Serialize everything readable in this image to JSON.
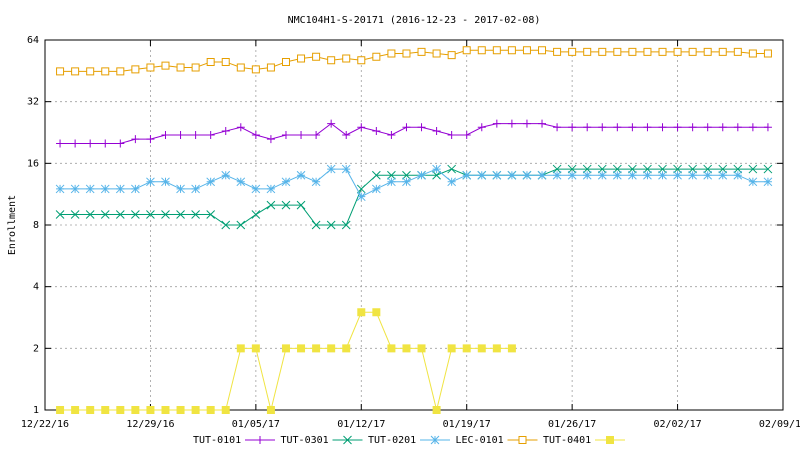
{
  "chart_data": {
    "type": "line",
    "title": "NMC104H1-S-20171 (2016-12-23 - 2017-02-08)",
    "y_label": "Enrollment",
    "yscale": "log",
    "grid": true,
    "legend": "bottom",
    "xlim": [
      "2016-12-22",
      "2017-02-09"
    ],
    "xticks": [
      {
        "value": "2016-12-22",
        "label": "12/22/16"
      },
      {
        "value": "2016-12-29",
        "label": "12/29/16"
      },
      {
        "value": "2017-01-05",
        "label": "01/05/17"
      },
      {
        "value": "2017-01-12",
        "label": "01/12/17"
      },
      {
        "value": "2017-01-19",
        "label": "01/19/17"
      },
      {
        "value": "2017-01-26",
        "label": "01/26/17"
      },
      {
        "value": "2017-02-02",
        "label": "02/02/17"
      },
      {
        "value": "2017-02-09",
        "label": "02/09/17"
      }
    ],
    "ylim": [
      1,
      64
    ],
    "yticks": [
      1,
      2,
      4,
      8,
      16,
      32,
      64
    ],
    "x": [
      "2016-12-23",
      "2016-12-24",
      "2016-12-25",
      "2016-12-26",
      "2016-12-27",
      "2016-12-28",
      "2016-12-29",
      "2016-12-30",
      "2016-12-31",
      "2017-01-01",
      "2017-01-02",
      "2017-01-03",
      "2017-01-04",
      "2017-01-05",
      "2017-01-06",
      "2017-01-07",
      "2017-01-08",
      "2017-01-09",
      "2017-01-10",
      "2017-01-11",
      "2017-01-12",
      "2017-01-13",
      "2017-01-14",
      "2017-01-15",
      "2017-01-16",
      "2017-01-17",
      "2017-01-18",
      "2017-01-19",
      "2017-01-20",
      "2017-01-21",
      "2017-01-22",
      "2017-01-23",
      "2017-01-24",
      "2017-01-25",
      "2017-01-26",
      "2017-01-27",
      "2017-01-28",
      "2017-01-29",
      "2017-01-30",
      "2017-01-31",
      "2017-02-01",
      "2017-02-02",
      "2017-02-03",
      "2017-02-04",
      "2017-02-05",
      "2017-02-06",
      "2017-02-07",
      "2017-02-08"
    ],
    "series": [
      {
        "name": "TUT-0101",
        "color": "#9400d3",
        "marker": "plus",
        "values": [
          20,
          20,
          20,
          20,
          20,
          21,
          21,
          22,
          22,
          22,
          22,
          23,
          24,
          22,
          21,
          22,
          22,
          22,
          25,
          22,
          24,
          23,
          22,
          24,
          24,
          23,
          22,
          22,
          24,
          25,
          25,
          25,
          25,
          24,
          24,
          24,
          24,
          24,
          24,
          24,
          24,
          24,
          24,
          24,
          24,
          24,
          24,
          24
        ]
      },
      {
        "name": "TUT-0301",
        "color": "#009e73",
        "marker": "cross",
        "values": [
          9,
          9,
          9,
          9,
          9,
          9,
          9,
          9,
          9,
          9,
          9,
          8,
          8,
          9,
          10,
          10,
          10,
          8,
          8,
          8,
          12,
          14,
          14,
          14,
          14,
          14,
          15,
          14,
          14,
          14,
          14,
          14,
          14,
          15,
          15,
          15,
          15,
          15,
          15,
          15,
          15,
          15,
          15,
          15,
          15,
          15,
          15,
          15
        ]
      },
      {
        "name": "TUT-0201",
        "color": "#56b4e9",
        "marker": "star",
        "values": [
          12,
          12,
          12,
          12,
          12,
          12,
          13,
          13,
          12,
          12,
          13,
          14,
          13,
          12,
          12,
          13,
          14,
          13,
          15,
          15,
          11,
          12,
          13,
          13,
          14,
          15,
          13,
          14,
          14,
          14,
          14,
          14,
          14,
          14,
          14,
          14,
          14,
          14,
          14,
          14,
          14,
          14,
          14,
          14,
          14,
          14,
          13,
          13
        ]
      },
      {
        "name": "LEC-0101",
        "color": "#e69f00",
        "marker": "square",
        "values": [
          45,
          45,
          45,
          45,
          45,
          46,
          47,
          48,
          47,
          47,
          50,
          50,
          47,
          46,
          47,
          50,
          52,
          53,
          51,
          52,
          51,
          53,
          55,
          55,
          56,
          55,
          54,
          57,
          57,
          57,
          57,
          57,
          57,
          56,
          56,
          56,
          56,
          56,
          56,
          56,
          56,
          56,
          56,
          56,
          56,
          56,
          55,
          55
        ]
      },
      {
        "name": "TUT-0401",
        "color": "#f0e442",
        "marker": "filled-square",
        "values": [
          1,
          1,
          1,
          1,
          1,
          1,
          1,
          1,
          1,
          1,
          1,
          1,
          2,
          2,
          1,
          2,
          2,
          2,
          2,
          2,
          3,
          3,
          2,
          2,
          2,
          1,
          2,
          2,
          2,
          2,
          2,
          null,
          null,
          null,
          null,
          null,
          null,
          null,
          null,
          null,
          null,
          null,
          null,
          null,
          null,
          null,
          null,
          null
        ]
      }
    ]
  }
}
